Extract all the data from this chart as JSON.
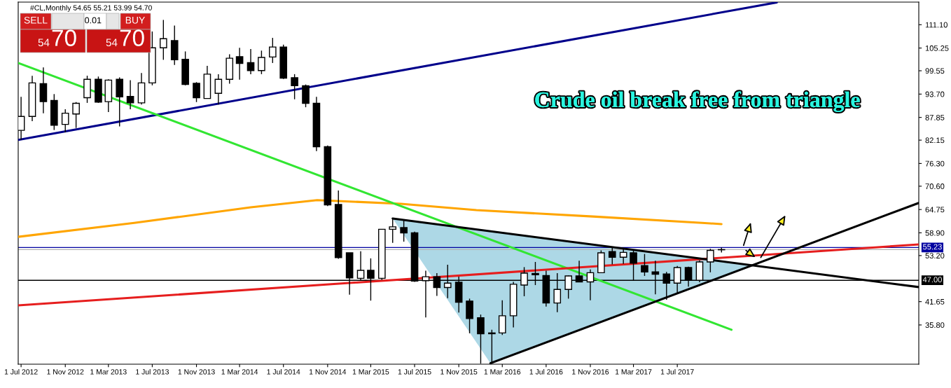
{
  "chart_data": {
    "type": "candlestick",
    "title": "Crude oil break free from triangle",
    "subtitle": "#CL,Monthly 54.65 55.21 53.99 54.70",
    "annotations": [
      "SELL",
      "0.01",
      "BUY",
      "54",
      "70",
      "54",
      "70"
    ],
    "x": [
      "2012-07",
      "2012-08",
      "2012-09",
      "2012-10",
      "2012-11",
      "2012-12",
      "2013-01",
      "2013-02",
      "2013-03",
      "2013-04",
      "2013-05",
      "2013-06",
      "2013-07",
      "2013-08",
      "2013-09",
      "2013-10",
      "2013-11",
      "2013-12",
      "2014-01",
      "2014-02",
      "2014-03",
      "2014-04",
      "2014-05",
      "2014-06",
      "2014-07",
      "2014-08",
      "2014-09",
      "2014-10",
      "2014-11",
      "2014-12",
      "2015-01",
      "2015-02",
      "2015-03",
      "2015-04",
      "2015-05",
      "2015-06",
      "2015-07",
      "2015-08",
      "2015-09",
      "2015-10",
      "2015-11",
      "2015-12",
      "2016-01",
      "2016-02",
      "2016-03",
      "2016-04",
      "2016-05",
      "2016-06",
      "2016-07",
      "2016-08",
      "2016-09",
      "2016-10",
      "2016-11",
      "2016-12",
      "2017-01",
      "2017-02",
      "2017-03",
      "2017-04",
      "2017-05",
      "2017-06",
      "2017-07",
      "2017-08",
      "2017-09",
      "2017-10",
      "2017-11"
    ],
    "ohlc": [
      [
        84.6,
        93.0,
        82.2,
        88.1
      ],
      [
        88.1,
        98.3,
        86.9,
        96.5
      ],
      [
        96.3,
        100.4,
        88.9,
        91.8
      ],
      [
        92.1,
        93.7,
        84.7,
        85.9
      ],
      [
        86.1,
        89.9,
        84.1,
        88.9
      ],
      [
        88.7,
        91.7,
        85.2,
        91.4
      ],
      [
        92.8,
        98.3,
        91.5,
        97.4
      ],
      [
        97.4,
        98.1,
        91.5,
        91.7
      ],
      [
        91.8,
        97.4,
        89.2,
        97.2
      ],
      [
        97.4,
        97.9,
        85.6,
        93.0
      ],
      [
        93.1,
        97.2,
        89.9,
        91.5
      ],
      [
        91.5,
        99.0,
        91.1,
        96.5
      ],
      [
        96.5,
        109.4,
        95.9,
        105.3
      ],
      [
        105.3,
        112.3,
        102.3,
        107.6
      ],
      [
        107.1,
        110.9,
        101.0,
        102.3
      ],
      [
        102.4,
        104.4,
        95.9,
        96.1
      ],
      [
        96.4,
        96.7,
        91.7,
        92.8
      ],
      [
        92.6,
        100.8,
        92.6,
        98.7
      ],
      [
        93.9,
        98.7,
        91.1,
        97.4
      ],
      [
        97.4,
        103.7,
        96.3,
        102.7
      ],
      [
        103.1,
        105.3,
        97.3,
        101.4
      ],
      [
        101.6,
        105.0,
        98.7,
        99.6
      ],
      [
        99.6,
        104.6,
        98.7,
        102.9
      ],
      [
        103.0,
        107.8,
        101.5,
        105.5
      ],
      [
        105.5,
        106.1,
        97.5,
        97.7
      ],
      [
        97.8,
        98.7,
        92.4,
        95.8
      ],
      [
        95.8,
        96.1,
        90.4,
        91.4
      ],
      [
        91.4,
        93.0,
        79.4,
        80.5
      ],
      [
        80.5,
        80.8,
        65.6,
        65.9
      ],
      [
        66.0,
        69.5,
        52.4,
        52.7
      ],
      [
        53.9,
        53.9,
        43.4,
        47.6
      ],
      [
        47.5,
        54.3,
        46.9,
        49.5
      ],
      [
        49.5,
        52.5,
        41.9,
        47.5
      ],
      [
        47.5,
        59.8,
        47.1,
        59.8
      ],
      [
        59.8,
        62.6,
        56.4,
        60.4
      ],
      [
        60.2,
        62.0,
        56.7,
        58.9
      ],
      [
        58.9,
        59.2,
        46.6,
        46.8
      ],
      [
        46.9,
        49.4,
        37.7,
        47.9
      ],
      [
        47.9,
        48.8,
        43.1,
        45.2
      ],
      [
        45.2,
        50.9,
        42.5,
        46.3
      ],
      [
        46.5,
        47.9,
        38.9,
        41.5
      ],
      [
        41.8,
        42.4,
        33.7,
        37.4
      ],
      [
        37.6,
        38.4,
        26.1,
        33.6
      ],
      [
        33.6,
        34.6,
        26.1,
        33.8
      ],
      [
        33.8,
        42.0,
        33.3,
        38.1
      ],
      [
        38.1,
        46.6,
        35.2,
        46.0
      ],
      [
        45.8,
        50.3,
        43.0,
        48.8
      ],
      [
        48.7,
        51.6,
        45.8,
        48.4
      ],
      [
        48.2,
        49.4,
        40.4,
        41.3
      ],
      [
        41.3,
        48.8,
        39.0,
        44.7
      ],
      [
        44.7,
        48.2,
        42.4,
        48.1
      ],
      [
        48.1,
        51.9,
        46.6,
        46.6
      ],
      [
        46.6,
        49.7,
        42.0,
        48.9
      ],
      [
        48.9,
        54.5,
        48.9,
        53.9
      ],
      [
        54.2,
        55.1,
        51.0,
        52.8
      ],
      [
        52.8,
        54.8,
        51.1,
        54.0
      ],
      [
        53.9,
        54.5,
        47.0,
        51.3
      ],
      [
        50.7,
        53.6,
        48.1,
        49.1
      ],
      [
        49.1,
        51.9,
        43.5,
        48.5
      ],
      [
        48.6,
        49.1,
        42.1,
        46.3
      ],
      [
        46.3,
        50.6,
        43.7,
        50.2
      ],
      [
        50.2,
        50.4,
        45.4,
        47.0
      ],
      [
        47.0,
        52.0,
        46.5,
        51.6
      ],
      [
        51.6,
        54.9,
        49.0,
        54.5
      ],
      [
        54.65,
        55.21,
        53.99,
        54.7
      ]
    ],
    "series": [
      {
        "type": "line",
        "color": "#ffa500",
        "x": [
          "2012-06-23",
          "2013-05-12",
          "2014-04-01",
          "2014-10-03",
          "2015-05-24",
          "2015-12-20",
          "2016-11-08",
          "2017-09-08",
          "2017-11-01"
        ],
        "values": [
          57.9,
          61.4,
          65.3,
          67.1,
          66.2,
          64.6,
          63.0,
          61.4,
          61.1
        ]
      },
      {
        "type": "line",
        "color": "#00008b",
        "x": [
          "2012-06-23",
          "2018-04-04"
        ],
        "values": [
          82.2,
          116.7
        ]
      },
      {
        "type": "line",
        "color": "#32e632",
        "x": [
          "2012-06-23",
          "2017-11-29"
        ],
        "values": [
          101.5,
          34.6
        ]
      },
      {
        "type": "line",
        "color": "#e61e1e",
        "x": [
          "2012-06-23",
          "2019-05-04"
        ],
        "values": [
          40.7,
          56.0
        ]
      },
      {
        "type": "line",
        "color": "#000000",
        "x": [
          "2015-05-01",
          "2019-05-04"
        ],
        "values": [
          62.5,
          45.3
        ]
      },
      {
        "type": "line",
        "color": "#000000",
        "x": [
          "2016-01-28",
          "2019-05-04"
        ],
        "values": [
          26.2,
          66.4
        ]
      }
    ],
    "ref_lines": [
      {
        "axis": "y",
        "value": 55.23,
        "label": "55.23",
        "color": "#0000a0"
      },
      {
        "axis": "y",
        "value": 54.7,
        "color": "#b4b4b4"
      },
      {
        "axis": "y",
        "value": 47.0,
        "label": "47.00",
        "color": "#000000"
      }
    ],
    "xlim": [
      "2012-06-23",
      "2019-05-04"
    ],
    "xticks": [
      {
        "value": "2012-07-01",
        "label": "1 Jul 2012"
      },
      {
        "value": "2012-11-01",
        "label": "1 Nov 2012"
      },
      {
        "value": "2013-03-01",
        "label": "1 Mar 2013"
      },
      {
        "value": "2013-07-01",
        "label": "1 Jul 2013"
      },
      {
        "value": "2013-11-01",
        "label": "1 Nov 2013"
      },
      {
        "value": "2014-03-01",
        "label": "1 Mar 2014"
      },
      {
        "value": "2014-07-01",
        "label": "1 Jul 2014"
      },
      {
        "value": "2014-11-01",
        "label": "1 Nov 2014"
      },
      {
        "value": "2015-03-01",
        "label": "1 Mar 2015"
      },
      {
        "value": "2015-07-01",
        "label": "1 Jul 2015"
      },
      {
        "value": "2015-11-01",
        "label": "1 Nov 2015"
      },
      {
        "value": "2016-03-01",
        "label": "1 Mar 2016"
      },
      {
        "value": "2016-07-01",
        "label": "1 Jul 2016"
      },
      {
        "value": "2016-11-01",
        "label": "1 Nov 2016"
      },
      {
        "value": "2017-03-01",
        "label": "1 Mar 2017"
      },
      {
        "value": "2017-07-01",
        "label": "1 Jul 2017"
      }
    ],
    "ylim": [
      25.96,
      116.77
    ],
    "yticks": [
      {
        "value": 111.1,
        "label": "111.10"
      },
      {
        "value": 105.25,
        "label": "105.25"
      },
      {
        "value": 99.55,
        "label": "99.55"
      },
      {
        "value": 93.7,
        "label": "93.70"
      },
      {
        "value": 87.85,
        "label": "87.85"
      },
      {
        "value": 82.15,
        "label": "82.15"
      },
      {
        "value": 76.3,
        "label": "76.30"
      },
      {
        "value": 70.6,
        "label": "70.60"
      },
      {
        "value": 64.75,
        "label": "64.75"
      },
      {
        "value": 58.9,
        "label": "58.90"
      },
      {
        "value": 53.2,
        "label": "53.20"
      },
      {
        "value": 41.65,
        "label": "41.65"
      },
      {
        "value": 35.8,
        "label": "35.80"
      }
    ],
    "grid": false,
    "legend": false
  }
}
